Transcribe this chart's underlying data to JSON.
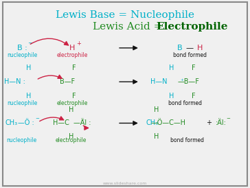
{
  "title_line1": "Lewis Base = Nucleophile",
  "title_line2_part1": "Lewis Acid = ",
  "title_line2_part2": "Electrophile",
  "bg_color": "#f0f0f0",
  "border_color": "#888888",
  "cyan": "#00b0c8",
  "green": "#228B22",
  "dark_green": "#006400",
  "red": "#cc2244",
  "black": "#111111",
  "watermark": "www.slideshare.com"
}
